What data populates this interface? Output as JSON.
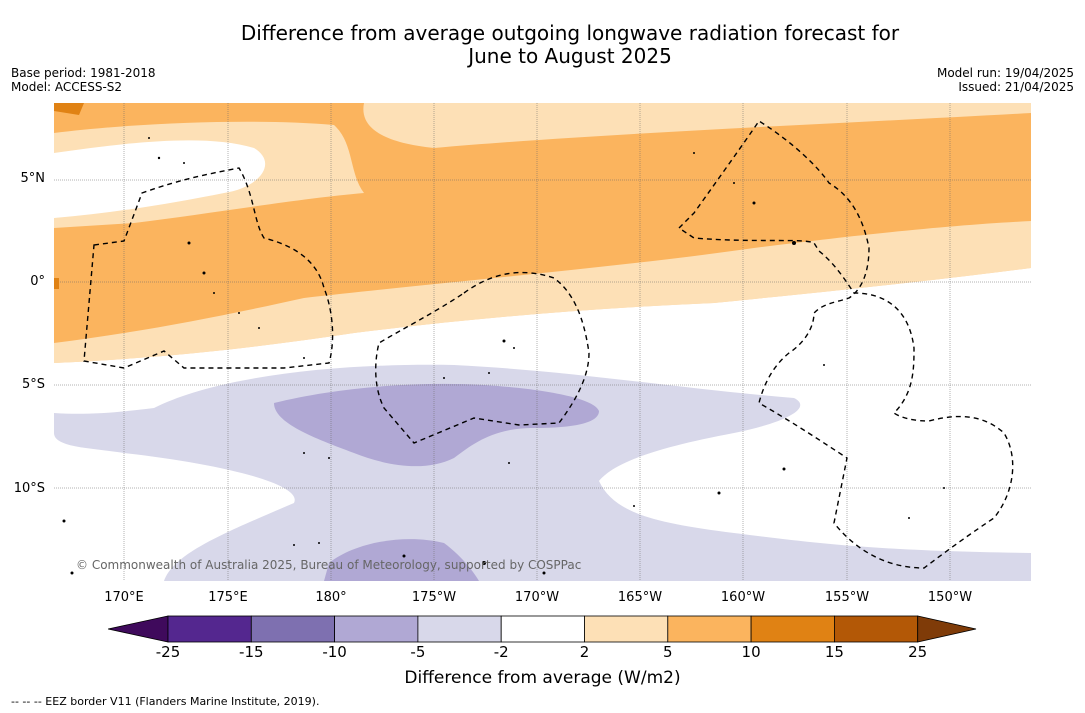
{
  "title_line1": "Difference from average outgoing longwave radiation forecast for",
  "title_line2": "June to August 2025",
  "meta_left": {
    "base_period": "Base period: 1981-2018",
    "model": "Model: ACCESS-S2"
  },
  "meta_right": {
    "model_run": "Model run: 19/04/2025",
    "issued": "Issued: 21/04/2025"
  },
  "lat_labels": [
    "5°N",
    "0°",
    "5°S",
    "10°S"
  ],
  "lon_labels": [
    "170°E",
    "175°E",
    "180°",
    "175°W",
    "170°W",
    "165°W",
    "160°W",
    "155°W",
    "150°W"
  ],
  "copyright": "© Commonwealth of Australia 2025, Bureau of Meteorology, supported by COSPPac",
  "colorbar": {
    "label": "Difference from average (W/m2)",
    "ticks": [
      "-25",
      "-15",
      "-10",
      "-5",
      "-2",
      "2",
      "5",
      "10",
      "15",
      "25"
    ],
    "colors": [
      "#3f0a5c",
      "#54278f",
      "#7e70b0",
      "#b0a8d4",
      "#d8d8ea",
      "#ffffff",
      "#fde0b6",
      "#fbb45e",
      "#e08214",
      "#b35806",
      "#7f3b08"
    ]
  },
  "footer": "--  --  -- EEZ border V11 (Flanders Marine Institute, 2019).",
  "chart_data": {
    "type": "heatmap",
    "title": "Difference from average outgoing longwave radiation forecast for June to August 2025",
    "colorbar_label": "Difference from average (W/m2)",
    "levels": [
      -25,
      -15,
      -10,
      -5,
      -2,
      2,
      5,
      10,
      15,
      25
    ],
    "lon_range_deg_east": [
      167.3,
      214.5
    ],
    "lat_range_deg": [
      -14.3,
      8.6
    ],
    "regions": [
      {
        "name": "strong positive band north of equator",
        "range": "5 to 10",
        "lat": [
          0,
          8
        ]
      },
      {
        "name": "weak positive band near equator",
        "range": "2 to 5",
        "lat": [
          -4,
          0
        ]
      },
      {
        "name": "negative anomaly south Pacific",
        "range": "-5 to -2",
        "lat": [
          -14,
          -5
        ]
      },
      {
        "name": "negative core near 175°W 7°S",
        "range": "-10 to -5",
        "lat": [
          -9,
          -5
        ]
      }
    ]
  }
}
